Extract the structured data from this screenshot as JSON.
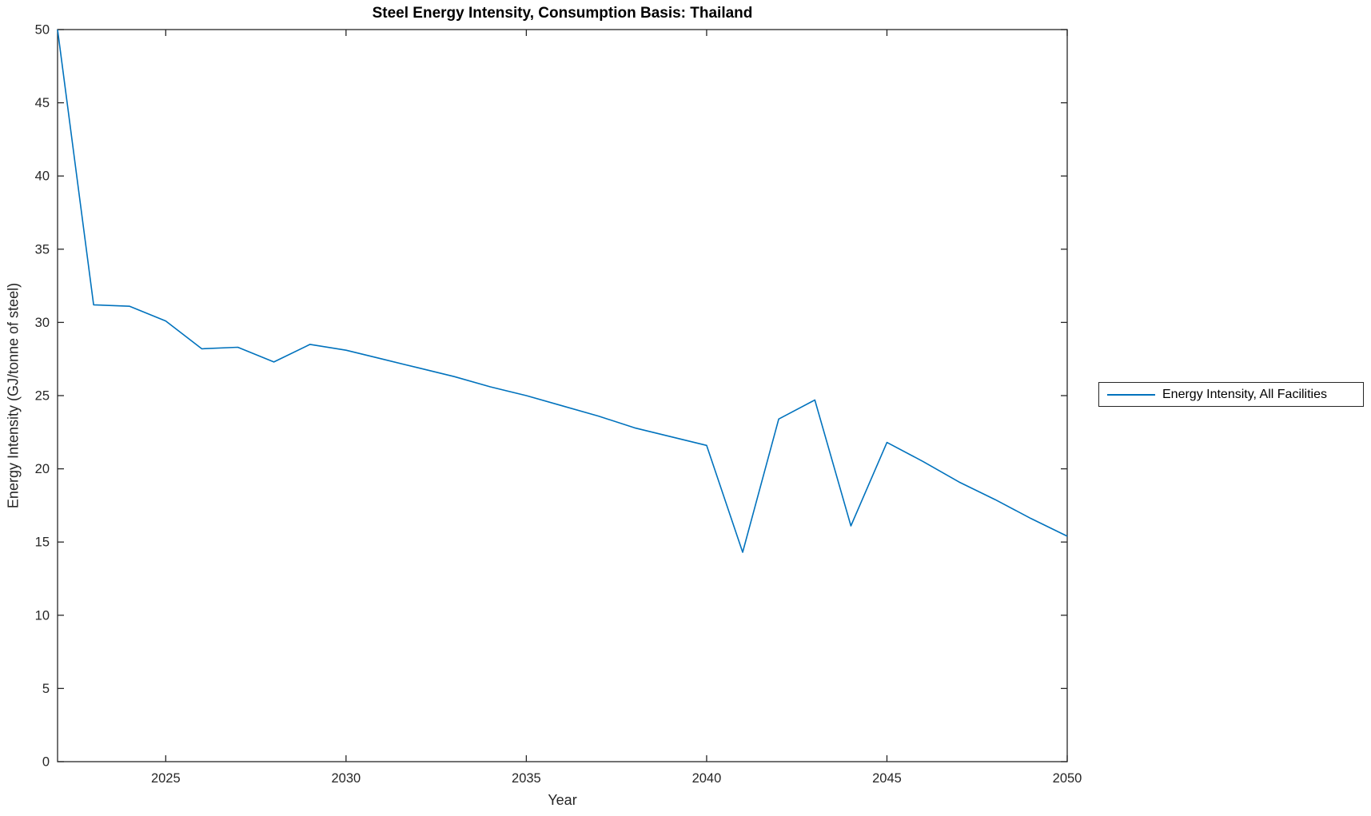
{
  "figure_title": "Steel Energy Intensity, Consumption Basis: Thailand",
  "colors": {
    "line": "#0072BD",
    "axis": "#262626",
    "title_text": "#000000",
    "background": "#ffffff"
  },
  "legend": {
    "label": "Energy Intensity, All Facilities",
    "position": "right-outside"
  },
  "chart_data": {
    "type": "line",
    "title": "Steel Energy Intensity, Consumption Basis: Thailand",
    "xlabel": "Year",
    "ylabel": "Energy Intensity (GJ/tonne of steel)",
    "xlim": [
      2022,
      2050
    ],
    "ylim": [
      0,
      50
    ],
    "xticks": [
      2025,
      2030,
      2035,
      2040,
      2045,
      2050
    ],
    "yticks": [
      0,
      5,
      10,
      15,
      20,
      25,
      30,
      35,
      40,
      45,
      50
    ],
    "grid": false,
    "box": true,
    "legend_position": "outside-right",
    "series": [
      {
        "name": "Energy Intensity, All Facilities",
        "color": "#0072BD",
        "x": [
          2022,
          2023,
          2024,
          2025,
          2026,
          2027,
          2028,
          2029,
          2030,
          2031,
          2032,
          2033,
          2034,
          2035,
          2036,
          2037,
          2038,
          2039,
          2040,
          2041,
          2042,
          2043,
          2044,
          2045,
          2046,
          2047,
          2048,
          2049,
          2050
        ],
        "y": [
          50.0,
          31.2,
          31.1,
          30.1,
          28.2,
          28.3,
          27.3,
          28.5,
          28.1,
          27.5,
          26.9,
          26.3,
          25.6,
          25.0,
          24.3,
          23.6,
          22.8,
          22.2,
          21.6,
          14.3,
          23.4,
          24.7,
          16.1,
          21.8,
          20.5,
          19.1,
          17.9,
          16.6,
          15.4
        ]
      }
    ]
  }
}
